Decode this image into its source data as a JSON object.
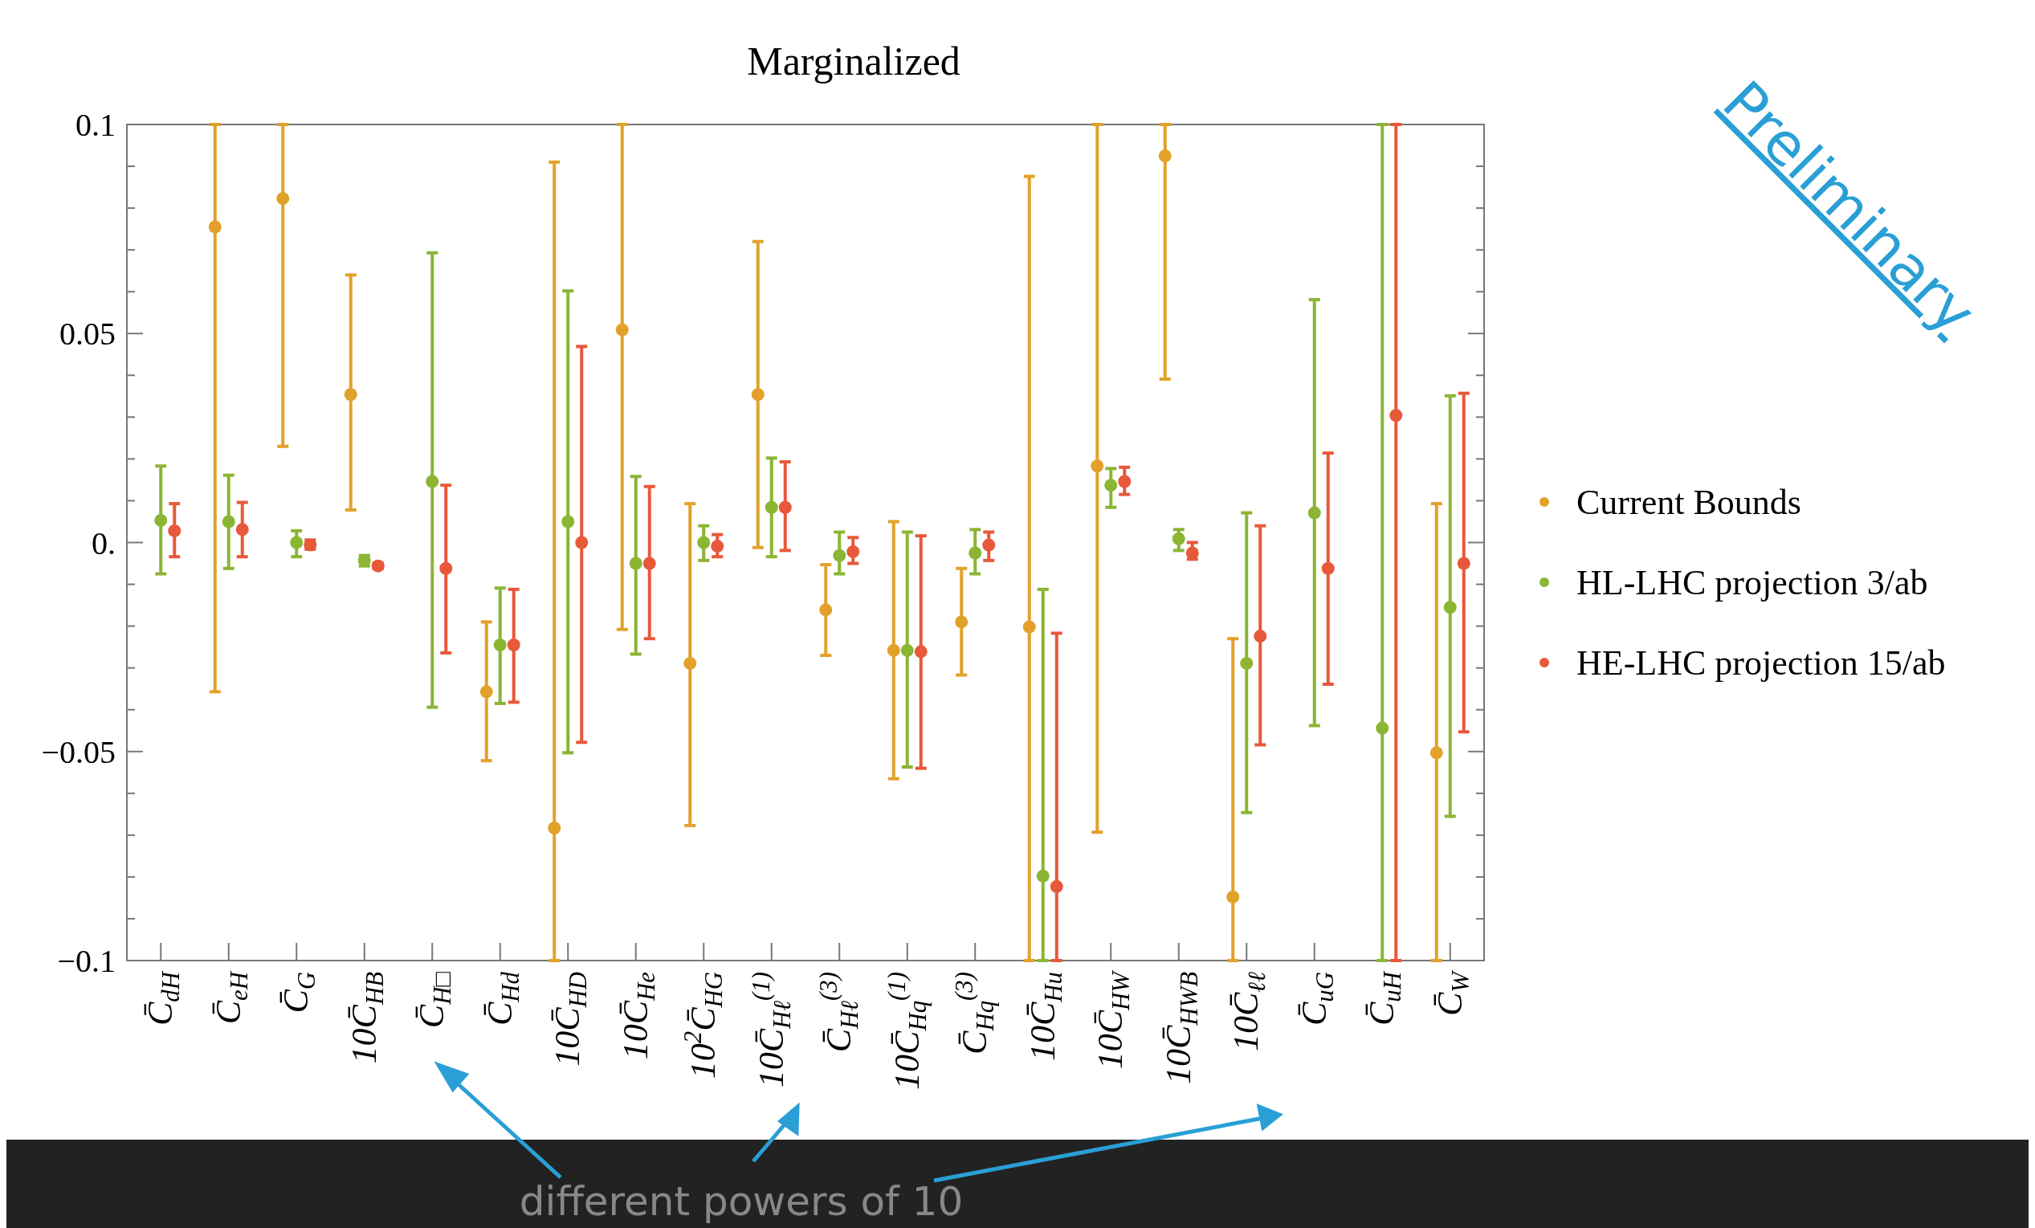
{
  "chart_data": {
    "type": "scatter",
    "title": "Marginalized",
    "categories": [
      "C̄$_{dH}$",
      "C̄$_{eH}$",
      "C̄$_{G}$",
      "10C̄$_{HB}$",
      "C̄$_{H□}$",
      "C̄$_{Hd}$",
      "10C̄$_{HD}$",
      "10C̄$_{He}$",
      "10$^{2}$C̄$_{HG}$",
      "10C̄$_{Hℓ}$$^{(1)}$",
      "C̄$_{Hℓ}$$^{(3)}$",
      "10C̄$_{Hq}$$^{(1)}$",
      "C̄$_{Hq}$$^{(3)}$",
      "10C̄$_{Hu}$",
      "10C̄$_{HW}$",
      "10C̄$_{HWB}$",
      "10C̄$_{ℓℓ}$",
      "C̄$_{uG}$",
      "C̄$_{uH}$",
      "C̄$_{W}$"
    ],
    "series": [
      {
        "name": "Current Bounds",
        "color": "#e2a12a",
        "values": [
          null,
          0.0755,
          0.0823,
          0.0354,
          null,
          -0.0357,
          -0.0683,
          0.0509,
          -0.0289,
          0.0354,
          -0.0161,
          -0.0258,
          -0.019,
          -0.0202,
          0.0183,
          0.0925,
          -0.0848,
          null,
          null,
          -0.0503
        ],
        "errors": [
          null,
          [
            -0.0357,
            0.1
          ],
          [
            0.023,
            0.1
          ],
          [
            0.0078,
            0.064
          ],
          null,
          [
            -0.0522,
            -0.019
          ],
          [
            -0.1,
            0.091
          ],
          [
            -0.0208,
            0.1
          ],
          [
            -0.0677,
            0.0093
          ],
          [
            -0.0012,
            0.072
          ],
          [
            -0.027,
            -0.0053
          ],
          [
            -0.0565,
            0.005
          ],
          [
            -0.0317,
            -0.0062
          ],
          [
            -0.1,
            0.0876
          ],
          [
            -0.0693,
            0.1
          ],
          [
            0.0391,
            0.1
          ],
          [
            -0.1,
            -0.023
          ],
          null,
          null,
          [
            -0.1,
            0.0093
          ]
        ]
      },
      {
        "name": "HL-LHC projection 3/ab",
        "color": "#8bb533",
        "values": [
          0.0053,
          0.005,
          0,
          -0.0043,
          0.0146,
          -0.0245,
          0.005,
          -0.005,
          0,
          0.0084,
          -0.0031,
          -0.0258,
          -0.0025,
          -0.0798,
          0.0137,
          0.0009,
          -0.0289,
          0.0071,
          -0.0444,
          -0.0155
        ],
        "errors": [
          [
            -0.0075,
            0.0183
          ],
          [
            -0.0062,
            0.0161
          ],
          [
            -0.0034,
            0.0028
          ],
          [
            -0.0056,
            -0.0031
          ],
          [
            -0.0394,
            0.0693
          ],
          [
            -0.0385,
            -0.0109
          ],
          [
            -0.0503,
            0.0602
          ],
          [
            -0.0267,
            0.0158
          ],
          [
            -0.0043,
            0.004
          ],
          [
            -0.0034,
            0.0202
          ],
          [
            -0.0075,
            0.0025
          ],
          [
            -0.0537,
            0.0025
          ],
          [
            -0.0075,
            0.0031
          ],
          [
            -0.1,
            -0.0112
          ],
          [
            0.0084,
            0.0177
          ],
          [
            -0.0019,
            0.0031
          ],
          [
            -0.0646,
            0.0071
          ],
          [
            -0.0438,
            0.0581
          ],
          [
            -0.1,
            0.1
          ],
          [
            -0.0655,
            0.0351
          ]
        ]
      },
      {
        "name": "HE-LHC projection 15/ab",
        "color": "#e8583a",
        "values": [
          0.0028,
          0.0031,
          -0.0006,
          -0.0056,
          -0.0062,
          -0.0245,
          0,
          -0.005,
          -0.0009,
          0.0084,
          -0.0022,
          -0.0261,
          -0.0006,
          -0.0823,
          0.0146,
          -0.0025,
          -0.0224,
          -0.0062,
          0.0304,
          -0.005
        ],
        "errors": [
          [
            -0.0034,
            0.0093
          ],
          [
            -0.0034,
            0.0096
          ],
          [
            -0.0016,
            0.0006
          ],
          [
            -0.0062,
            -0.0049
          ],
          [
            -0.0264,
            0.0137
          ],
          [
            -0.0382,
            -0.0112
          ],
          [
            -0.0478,
            0.0469
          ],
          [
            -0.023,
            0.0134
          ],
          [
            -0.0034,
            0.0019
          ],
          [
            -0.0019,
            0.0193
          ],
          [
            -0.005,
            0.0012
          ],
          [
            -0.054,
            0.0016
          ],
          [
            -0.0043,
            0.0025
          ],
          [
            -0.1,
            -0.0217
          ],
          [
            0.0115,
            0.018
          ],
          [
            -0.004,
            0
          ],
          [
            -0.0484,
            0.004
          ],
          [
            -0.0339,
            0.0214
          ],
          [
            -0.1,
            0.1
          ],
          [
            -0.0453,
            0.0357
          ]
        ]
      }
    ],
    "ylim": [
      -0.1,
      0.1
    ],
    "yticks": [
      {
        "value": -0.1,
        "label": "−0.1"
      },
      {
        "value": -0.05,
        "label": "−0.05"
      },
      {
        "value": 0,
        "label": "0."
      },
      {
        "value": 0.05,
        "label": "0.05"
      },
      {
        "value": 0.1,
        "label": "0.1"
      },
      {
        "value": -0.09,
        "label": null
      },
      {
        "value": -0.08,
        "label": null
      },
      {
        "value": -0.07,
        "label": null
      },
      {
        "value": -0.06,
        "label": null
      },
      {
        "value": -0.04,
        "label": null
      },
      {
        "value": -0.03,
        "label": null
      },
      {
        "value": -0.02,
        "label": null
      },
      {
        "value": -0.01,
        "label": null
      },
      {
        "value": 0.01,
        "label": null
      },
      {
        "value": 0.02,
        "label": null
      },
      {
        "value": 0.03,
        "label": null
      },
      {
        "value": 0.04,
        "label": null
      },
      {
        "value": 0.06,
        "label": null
      },
      {
        "value": 0.07,
        "label": null
      },
      {
        "value": 0.08,
        "label": null
      },
      {
        "value": 0.09,
        "label": null
      }
    ],
    "legend": "right",
    "marker": "circle",
    "grid": false,
    "annotations": [
      "Preliminary",
      "different powers of 10"
    ]
  }
}
